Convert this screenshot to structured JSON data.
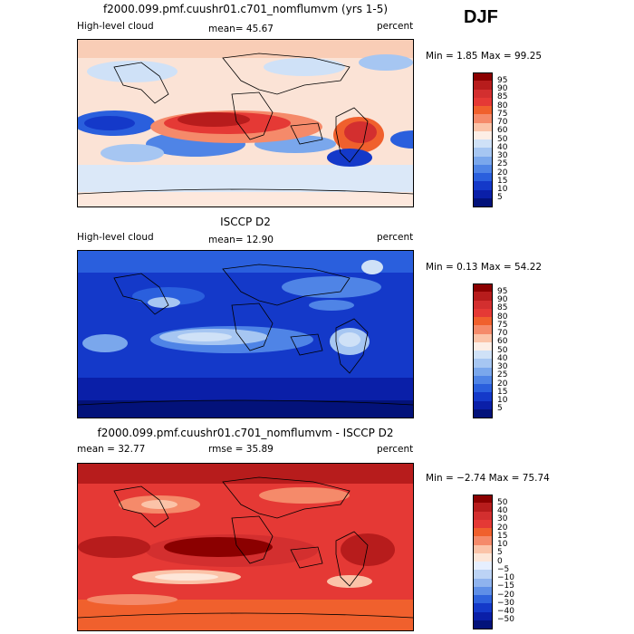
{
  "season": "DJF",
  "panels": [
    {
      "title": "f2000.099.pmf.cuushr01.c701_nomflumvm (yrs 1-5)",
      "left_label": "High-level cloud",
      "mean_text": "mean=  45.67",
      "units": "percent",
      "minmax_text": "Min =   1.85 Max =  99.25",
      "colorbar": {
        "labels": [
          "95",
          "90",
          "85",
          "80",
          "75",
          "70",
          "60",
          "50",
          "40",
          "30",
          "25",
          "20",
          "15",
          "10",
          "5"
        ],
        "colors": [
          "#8b0000",
          "#b71c1c",
          "#d32f2f",
          "#e53935",
          "#f0602d",
          "#f58a6a",
          "#fbc3a8",
          "#fdeee6",
          "#cfe1f7",
          "#a6c6f2",
          "#7aa7ec",
          "#4f84e6",
          "#2a5fdd",
          "#1439c9",
          "#0a1fa8",
          "#03127a"
        ]
      }
    },
    {
      "title": "ISCCP D2",
      "left_label": "High-level cloud",
      "mean_text": "mean=  12.90",
      "units": "percent",
      "minmax_text": "Min =   0.13 Max =  54.22",
      "colorbar": {
        "labels": [
          "95",
          "90",
          "85",
          "80",
          "75",
          "70",
          "60",
          "50",
          "40",
          "30",
          "25",
          "20",
          "15",
          "10",
          "5"
        ],
        "colors": [
          "#8b0000",
          "#b71c1c",
          "#d32f2f",
          "#e53935",
          "#f0602d",
          "#f58a6a",
          "#fbc3a8",
          "#fdeee6",
          "#cfe1f7",
          "#a6c6f2",
          "#7aa7ec",
          "#4f84e6",
          "#2a5fdd",
          "#1439c9",
          "#0a1fa8",
          "#03127a"
        ]
      }
    },
    {
      "title": "f2000.099.pmf.cuushr01.c701_nomflumvm - ISCCP D2",
      "left_label": "mean =   32.77",
      "mean_text": "rmse =   35.89",
      "units": "percent",
      "minmax_text": "Min = −2.74 Max =  75.74",
      "colorbar": {
        "labels": [
          "50",
          "40",
          "30",
          "20",
          "15",
          "10",
          "5",
          "0",
          "−5",
          "−10",
          "−15",
          "−20",
          "−30",
          "−40",
          "−50"
        ],
        "colors": [
          "#8b0000",
          "#b71c1c",
          "#d32f2f",
          "#e53935",
          "#f0602d",
          "#f58a6a",
          "#fbc3a8",
          "#fde6d8",
          "#e6efff",
          "#bcd3f5",
          "#8fb3ee",
          "#5f8fe7",
          "#2f63dd",
          "#1439c9",
          "#0a1fa8",
          "#03127a"
        ]
      }
    }
  ]
}
